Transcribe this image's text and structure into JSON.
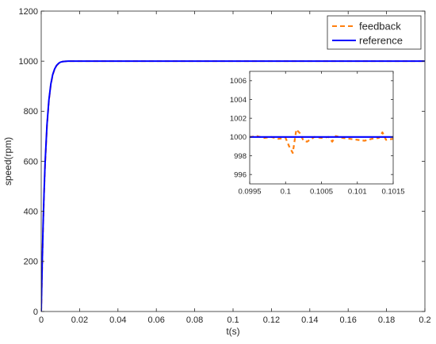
{
  "chart_data": [
    {
      "type": "line",
      "title": "",
      "xlabel": "t(s)",
      "ylabel": "speed(rpm)",
      "xlim": [
        0,
        0.2
      ],
      "ylim": [
        0,
        1200
      ],
      "xticks": [
        0,
        0.02,
        0.04,
        0.06,
        0.08,
        0.1,
        0.12,
        0.14,
        0.16,
        0.18,
        0.2
      ],
      "xtick_labels": [
        "0",
        "0.02",
        "0.04",
        "0.06",
        "0.08",
        "0.1",
        "0.12",
        "0.14",
        "0.16",
        "0.18",
        "0.2"
      ],
      "yticks": [
        0,
        200,
        400,
        600,
        800,
        1000,
        1200
      ],
      "ytick_labels": [
        "0",
        "200",
        "400",
        "600",
        "800",
        "1000",
        "1200"
      ],
      "grid": false,
      "legend_position": "top-right",
      "series": [
        {
          "name": "feedback",
          "color": "#ff7f0e",
          "style": "dashed",
          "x": [
            0,
            0.0005,
            0.001,
            0.0015,
            0.002,
            0.003,
            0.004,
            0.005,
            0.006,
            0.007,
            0.008,
            0.009,
            0.01,
            0.011,
            0.012,
            0.014,
            0.016,
            0.02,
            0.05,
            0.1,
            0.15,
            0.2
          ],
          "y": [
            0,
            180,
            340,
            470,
            580,
            740,
            840,
            905,
            945,
            968,
            982,
            990,
            995,
            998,
            999,
            1000,
            1000,
            1000,
            1000,
            1000,
            1000,
            1000
          ]
        },
        {
          "name": "reference",
          "color": "#0000ff",
          "style": "solid",
          "x": [
            0,
            0.0005,
            0.001,
            0.0015,
            0.002,
            0.003,
            0.004,
            0.005,
            0.006,
            0.007,
            0.008,
            0.009,
            0.01,
            0.011,
            0.012,
            0.014,
            0.016,
            0.02,
            0.05,
            0.1,
            0.15,
            0.2
          ],
          "y": [
            0,
            190,
            350,
            480,
            590,
            745,
            845,
            908,
            947,
            969,
            983,
            991,
            996,
            998,
            999,
            1000,
            1000,
            1000,
            1000,
            1000,
            1000,
            1000
          ]
        }
      ]
    },
    {
      "type": "line",
      "title": "",
      "xlabel": "",
      "ylabel": "",
      "xlim": [
        0.0995,
        0.1015
      ],
      "ylim": [
        995,
        1007
      ],
      "xticks": [
        0.0995,
        0.1,
        0.1005,
        0.101,
        0.1015
      ],
      "xtick_labels": [
        "0.0995",
        "0.1",
        "0.1005",
        "0.101",
        "0.1015"
      ],
      "yticks": [
        996,
        998,
        1000,
        1002,
        1004,
        1006
      ],
      "ytick_labels": [
        "996",
        "998",
        "1000",
        "1002",
        "1004",
        "1006"
      ],
      "grid": false,
      "series": [
        {
          "name": "feedback",
          "color": "#ff7f0e",
          "style": "dashed",
          "x": [
            0.0995,
            0.0996,
            0.0997,
            0.0998,
            0.0999,
            0.1,
            0.10005,
            0.1001,
            0.10015,
            0.1002,
            0.10025,
            0.1003,
            0.1004,
            0.1005,
            0.1006,
            0.10065,
            0.1007,
            0.1008,
            0.1009,
            0.101,
            0.1011,
            0.1012,
            0.1013,
            0.10135,
            0.1014,
            0.1015
          ],
          "y": [
            1000,
            1000.1,
            999.9,
            1000,
            999.8,
            999.9,
            999.0,
            998.3,
            1000.8,
            1000.4,
            999.6,
            999.5,
            1000,
            999.9,
            1000,
            999.5,
            1000.1,
            999.9,
            999.8,
            999.7,
            999.6,
            999.8,
            999.9,
            1000.5,
            999.7,
            999.8
          ]
        },
        {
          "name": "reference",
          "color": "#0000ff",
          "style": "solid",
          "x": [
            0.0995,
            0.1015
          ],
          "y": [
            1000,
            1000
          ]
        }
      ]
    }
  ]
}
